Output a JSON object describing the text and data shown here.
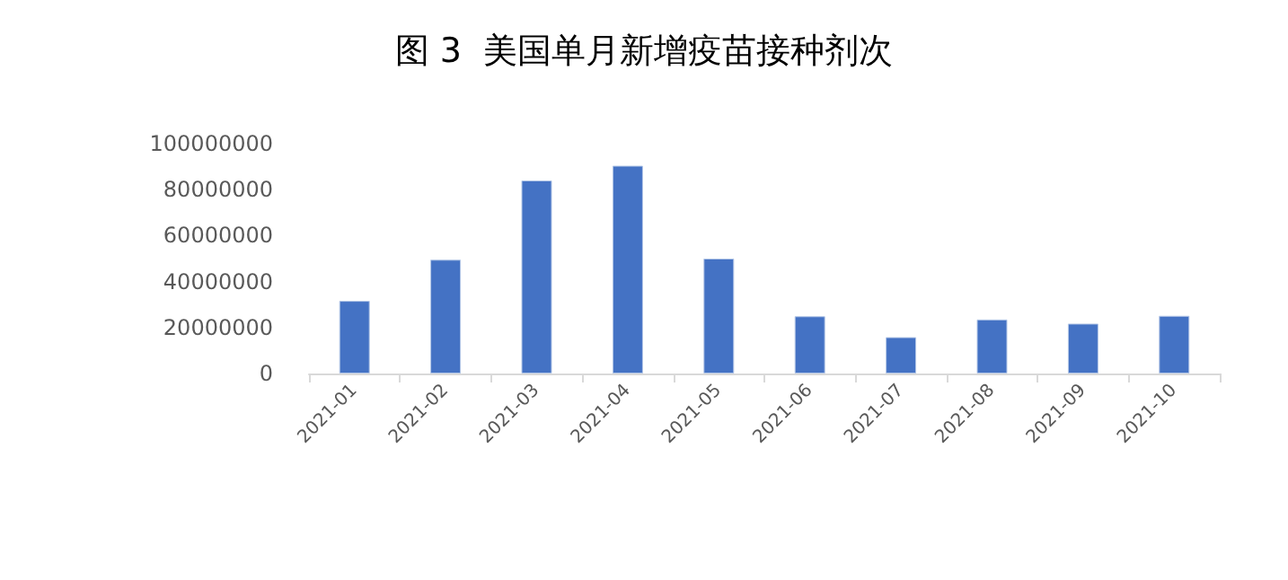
{
  "chart_data": {
    "type": "bar",
    "title": "图 3  美国单月新增疫苗接种剂次",
    "categories": [
      "2021-01",
      "2021-02",
      "2021-03",
      "2021-04",
      "2021-05",
      "2021-06",
      "2021-07",
      "2021-08",
      "2021-09",
      "2021-10"
    ],
    "values": [
      31600000,
      49500000,
      84000000,
      90400000,
      50000000,
      24900000,
      15800000,
      23500000,
      21700000,
      25100000
    ],
    "color": "#4472c4",
    "ylim": [
      0,
      100000000
    ],
    "yticks": [
      0,
      20000000,
      40000000,
      60000000,
      80000000,
      100000000
    ],
    "grid": false
  }
}
